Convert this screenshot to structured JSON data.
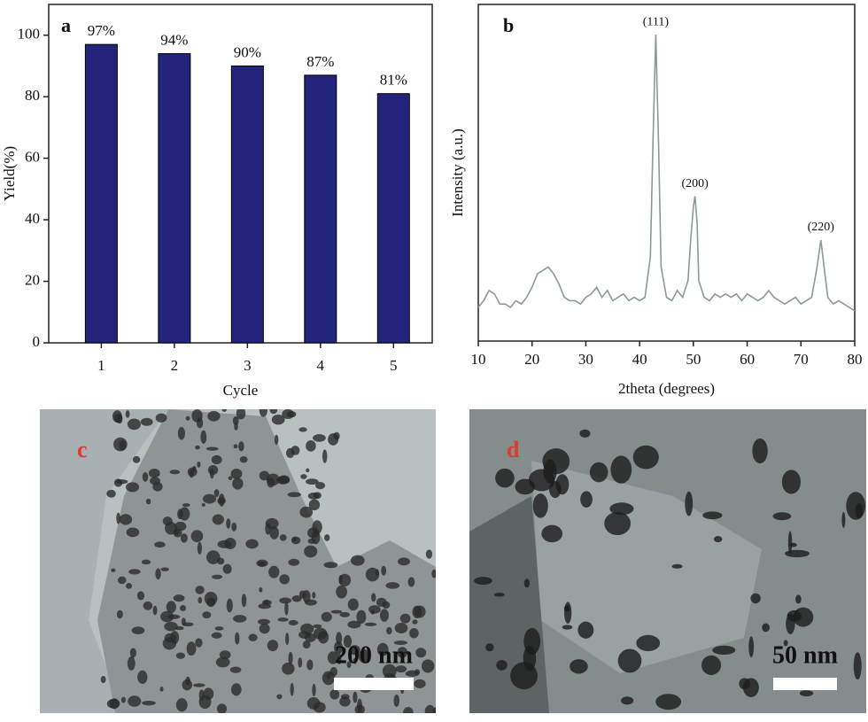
{
  "chart_data": [
    {
      "type": "bar",
      "panel": "a",
      "ylabel": "Yield(%)",
      "xlabel": "Cycle",
      "categories": [
        "1",
        "2",
        "3",
        "4",
        "5"
      ],
      "values": [
        97,
        94,
        90,
        87,
        81
      ],
      "value_labels": [
        "97%",
        "94%",
        "90%",
        "87%",
        "81%"
      ],
      "color": "#24247c",
      "ylim": [
        0,
        110
      ],
      "yticks": [
        0,
        20,
        40,
        60,
        80,
        100
      ],
      "grid": false
    },
    {
      "type": "line",
      "panel": "b",
      "ylabel": "Intensity (a.u.)",
      "xlabel": "2theta (degrees)",
      "x": [
        10,
        11,
        12,
        13,
        14,
        15,
        16,
        17,
        18,
        19,
        20,
        21,
        22,
        23,
        24,
        25,
        26,
        27,
        28,
        29,
        30,
        31,
        32,
        33,
        34,
        35,
        36,
        37,
        38,
        39,
        40,
        41,
        42,
        42.5,
        43,
        43.5,
        44,
        45,
        46,
        47,
        48,
        49,
        49.5,
        50,
        50.3,
        50.7,
        51,
        52,
        53,
        54,
        55,
        56,
        57,
        58,
        59,
        60,
        61,
        62,
        63,
        64,
        65,
        66,
        67,
        68,
        69,
        70,
        71,
        72,
        73,
        73.7,
        74.3,
        75,
        76,
        77,
        78,
        79,
        80
      ],
      "values": [
        10,
        12,
        15,
        14,
        11,
        11,
        10,
        12,
        11,
        13,
        16,
        20,
        21,
        22,
        20,
        17,
        13,
        12,
        12,
        11,
        13,
        14,
        16,
        13,
        15,
        12,
        13,
        14,
        12,
        13,
        12,
        13,
        25,
        60,
        91,
        60,
        22,
        13,
        12,
        15,
        13,
        18,
        30,
        40,
        43,
        35,
        18,
        13,
        12,
        14,
        13,
        14,
        13,
        14,
        12,
        14,
        13,
        12,
        13,
        15,
        13,
        12,
        11,
        12,
        13,
        11,
        12,
        13,
        22,
        30,
        22,
        13,
        11,
        12,
        11,
        10,
        9
      ],
      "color": "#8a9a96",
      "xlim": [
        10,
        80
      ],
      "xticks": [
        10,
        20,
        30,
        40,
        50,
        60,
        70,
        80
      ],
      "ylim": [
        0,
        100
      ],
      "annotations": [
        {
          "text": "(111)",
          "x": 43
        },
        {
          "text": "(200)",
          "x": 50.3
        },
        {
          "text": "(220)",
          "x": 73.7
        }
      ]
    }
  ],
  "micrographs": [
    {
      "label": "c",
      "scale_bar": "200 nm"
    },
    {
      "label": "d",
      "scale_bar": "50 nm"
    }
  ]
}
